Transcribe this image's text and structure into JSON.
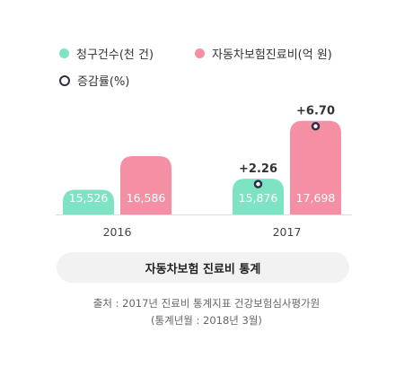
{
  "legend": {
    "claims": "청구건수(천 건)",
    "cost": "자동차보험진료비(억 원)",
    "rate": "증감률(%)"
  },
  "colors": {
    "claims": "#7ee3c4",
    "cost": "#f58fa3",
    "rate_marker": "#2e2e46",
    "axis": "#dddddd"
  },
  "chart_data": {
    "type": "bar",
    "categories": [
      "2016",
      "2017"
    ],
    "series": [
      {
        "name": "청구건수(천 건)",
        "values": [
          15526,
          15876
        ],
        "labels": [
          "15,526",
          "15,876"
        ]
      },
      {
        "name": "자동차보험진료비(억 원)",
        "values": [
          16586,
          17698
        ],
        "labels": [
          "16,586",
          "17,698"
        ]
      }
    ],
    "growth_rate": {
      "name": "증감률(%)",
      "values": [
        2.26,
        6.7
      ],
      "labels": [
        "+2.26",
        "+6.70"
      ],
      "category": "2017"
    },
    "legend_position": "top-left",
    "grid": false
  },
  "caption": "자동차보험 진료비 통계",
  "source": {
    "line1": "출처 : 2017년 진료비 통계지표 건강보험심사평가원",
    "line2": "(통계년월 : 2018년 3월)"
  }
}
